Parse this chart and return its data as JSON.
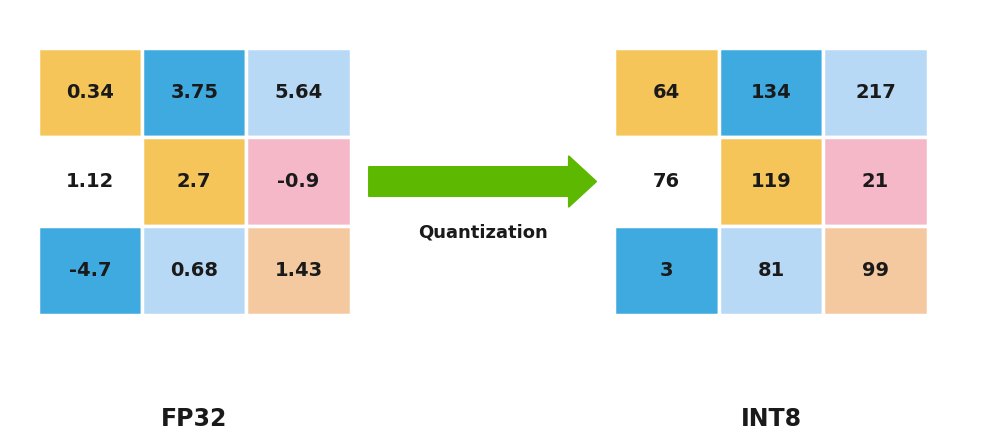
{
  "fp32_values": [
    [
      "0.34",
      "3.75",
      "5.64"
    ],
    [
      "1.12",
      "2.7",
      "-0.9"
    ],
    [
      "-4.7",
      "0.68",
      "1.43"
    ]
  ],
  "int8_values": [
    [
      "64",
      "134",
      "217"
    ],
    [
      "76",
      "119",
      "21"
    ],
    [
      "3",
      "81",
      "99"
    ]
  ],
  "fp32_colors": [
    [
      "#F5C55A",
      "#3EAAE0",
      "#B8D9F5"
    ],
    [
      "#FFFFFF",
      "#F5C55A",
      "#F5B8C8"
    ],
    [
      "#3EAAE0",
      "#B8D9F5",
      "#F5C9A0"
    ]
  ],
  "int8_colors": [
    [
      "#F5C55A",
      "#3EAAE0",
      "#B8D9F5"
    ],
    [
      "#FFFFFF",
      "#F5C55A",
      "#F5B8C8"
    ],
    [
      "#3EAAE0",
      "#B8D9F5",
      "#F5C9A0"
    ]
  ],
  "fp32_label": "FP32",
  "int8_label": "INT8",
  "arrow_label": "Quantization",
  "arrow_color": "#5CB800",
  "background_color": "#FFFFFF",
  "text_color": "#1a1a1a",
  "label_fontsize": 17,
  "value_fontsize": 14
}
